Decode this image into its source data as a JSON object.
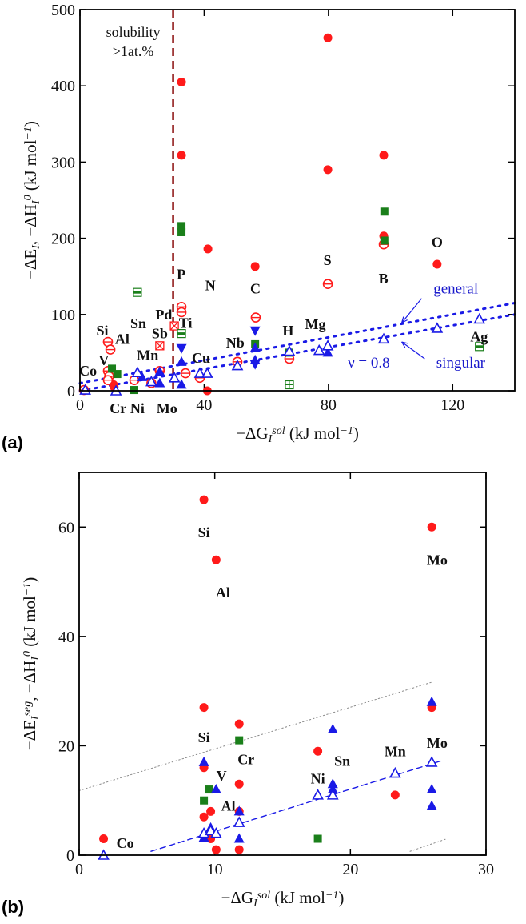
{
  "chart_data": [
    {
      "panel_label": "(a)",
      "type": "scatter",
      "xlabel": "−ΔG_{I}^{sol}   (kJ mol^{−1})",
      "ylabel": "−ΔE_{I},  −ΔH_{I}^{0}   (kJ mol^{−1})",
      "xlim": [
        0,
        140
      ],
      "ylim": [
        0,
        500
      ],
      "xticks": [
        0,
        40,
        80,
        120
      ],
      "yticks": [
        0,
        100,
        200,
        300,
        400,
        500
      ],
      "grid": false,
      "colors": {
        "red": "#ff1a1a",
        "green": "#1a7f1a",
        "blue": "#1a1ae6",
        "threshold": "#8b1010"
      },
      "threshold_line": {
        "x": 30,
        "style": "dashed",
        "label_lines": [
          "solubility",
          ">1at.%"
        ]
      },
      "series": [
        {
          "marker": "filled-circle",
          "color": "#ff1a1a",
          "points": [
            [
              32.7,
              405
            ],
            [
              32.7,
              309
            ],
            [
              41.2,
              186
            ],
            [
              41,
              0
            ],
            [
              56.4,
              163
            ],
            [
              79.8,
              463
            ],
            [
              79.8,
              290
            ],
            [
              97.8,
              309
            ],
            [
              97.8,
              203
            ],
            [
              115,
              166
            ],
            [
              10.8,
              8
            ],
            [
              11,
              5
            ]
          ]
        },
        {
          "marker": "open-circle-bar",
          "color": "#ff1a1a",
          "points": [
            [
              9,
              64
            ],
            [
              9.8,
              54
            ],
            [
              9,
              26
            ],
            [
              9.4,
              19
            ],
            [
              9,
              14
            ],
            [
              1.3,
              1
            ],
            [
              17.5,
              14
            ],
            [
              23,
              10
            ],
            [
              25.7,
              26
            ],
            [
              32.7,
              110
            ],
            [
              32.7,
              103
            ],
            [
              34,
              23
            ],
            [
              38.6,
              17
            ],
            [
              56.6,
              96
            ],
            [
              50.7,
              38
            ],
            [
              67.4,
              42
            ],
            [
              79.8,
              140
            ],
            [
              97.8,
              192
            ]
          ]
        },
        {
          "marker": "crossed-square",
          "color": "#ff1a1a",
          "points": [
            [
              30.4,
              85
            ],
            [
              25.7,
              59
            ]
          ]
        },
        {
          "marker": "filled-square",
          "color": "#1a7f1a",
          "points": [
            [
              32.7,
              216
            ],
            [
              32.7,
              208
            ],
            [
              98,
              235
            ],
            [
              98,
              197
            ],
            [
              10.3,
              29
            ],
            [
              12,
              22
            ],
            [
              17.5,
              1
            ],
            [
              56.4,
              61
            ],
            [
              67.4,
              50
            ]
          ]
        },
        {
          "marker": "half-square",
          "color": "#1a7f1a",
          "points": [
            [
              18.5,
              129
            ],
            [
              32.7,
              75
            ],
            [
              128.6,
              58
            ]
          ]
        },
        {
          "marker": "grid-square",
          "color": "#1a7f1a",
          "points": [
            [
              67.4,
              8
            ]
          ]
        },
        {
          "marker": "filled-triangle-up",
          "color": "#1a1ae6",
          "points": [
            [
              32.7,
              38
            ],
            [
              32.7,
              8
            ],
            [
              25.7,
              10
            ],
            [
              25.7,
              25
            ],
            [
              56.4,
              56
            ],
            [
              56.4,
              40
            ],
            [
              79.8,
              50
            ],
            [
              20,
              18
            ]
          ]
        },
        {
          "marker": "filled-triangle-down",
          "color": "#1a1ae6",
          "points": [
            [
              32.7,
              56
            ],
            [
              56.4,
              79
            ],
            [
              56.4,
              35
            ]
          ]
        },
        {
          "marker": "open-triangle-up",
          "color": "#1a1ae6",
          "points": [
            [
              1.7,
              1
            ],
            [
              11.6,
              0
            ],
            [
              18.5,
              24
            ],
            [
              23,
              12
            ],
            [
              30.4,
              17
            ],
            [
              38.6,
              23
            ],
            [
              41,
              23
            ],
            [
              50.7,
              33
            ],
            [
              67.4,
              52
            ],
            [
              77,
              53
            ],
            [
              79.8,
              59
            ],
            [
              97.8,
              68
            ],
            [
              115,
              82
            ],
            [
              128.6,
              94
            ]
          ]
        }
      ],
      "lines": [
        {
          "label": "general",
          "style": "dotted",
          "color": "#1a1ae6",
          "from": [
            0,
            10
          ],
          "to": [
            140,
            115
          ]
        },
        {
          "label": "singular",
          "style": "dotted",
          "color": "#1a1ae6",
          "from": [
            0,
            0
          ],
          "to": [
            140,
            100
          ]
        }
      ],
      "line_annotation": "ν = 0.8",
      "element_labels": [
        {
          "text": "Co",
          "x": 2.6,
          "y": 26
        },
        {
          "text": "Si",
          "x": 7.2,
          "y": 79
        },
        {
          "text": "V",
          "x": 7.7,
          "y": 40
        },
        {
          "text": "Al",
          "x": 13.6,
          "y": 68
        },
        {
          "text": "Sn",
          "x": 18.8,
          "y": 88
        },
        {
          "text": "Mn",
          "x": 21.8,
          "y": 47
        },
        {
          "text": "Sb",
          "x": 25.7,
          "y": 75
        },
        {
          "text": "Pd",
          "x": 27,
          "y": 100
        },
        {
          "text": "Ti",
          "x": 34,
          "y": 89
        },
        {
          "text": "P",
          "x": 32.6,
          "y": 153
        },
        {
          "text": "N",
          "x": 42,
          "y": 138
        },
        {
          "text": "C",
          "x": 56.5,
          "y": 134
        },
        {
          "text": "Cu",
          "x": 39,
          "y": 43
        },
        {
          "text": "Nb",
          "x": 50,
          "y": 63
        },
        {
          "text": "H",
          "x": 67,
          "y": 79
        },
        {
          "text": "Mg",
          "x": 75.8,
          "y": 87
        },
        {
          "text": "S",
          "x": 79.7,
          "y": 171
        },
        {
          "text": "B",
          "x": 97.7,
          "y": 147
        },
        {
          "text": "O",
          "x": 115,
          "y": 195
        },
        {
          "text": "Ag",
          "x": 128.5,
          "y": 71
        },
        {
          "text": "Cr",
          "x": 12.3,
          "y": -23
        },
        {
          "text": "Ni",
          "x": 18.5,
          "y": -23
        },
        {
          "text": "Mo",
          "x": 28,
          "y": -23
        }
      ]
    },
    {
      "panel_label": "(b)",
      "type": "scatter",
      "xlabel": "−ΔG_{I}^{sol}   (kJ mol^{−1})",
      "ylabel": "−ΔE_{I}^{seg},  −ΔH_{I}^{0}   (kJ mol^{−1})",
      "xlim": [
        0,
        30
      ],
      "ylim": [
        0,
        70
      ],
      "xticks": [
        0,
        10,
        20,
        30
      ],
      "yticks": [
        0,
        20,
        40,
        60
      ],
      "grid": false,
      "series": [
        {
          "marker": "filled-circle",
          "color": "#ff1a1a",
          "points": [
            [
              9.2,
              65
            ],
            [
              26,
              60
            ],
            [
              10.1,
              54
            ],
            [
              9.2,
              27
            ],
            [
              11.8,
              24
            ],
            [
              26,
              27
            ],
            [
              17.6,
              19
            ],
            [
              9.2,
              16
            ],
            [
              11.8,
              13
            ],
            [
              23.3,
              11
            ],
            [
              9.7,
              8
            ],
            [
              9.2,
              7
            ],
            [
              11.8,
              8
            ],
            [
              1.8,
              3
            ],
            [
              9.7,
              3
            ],
            [
              10.1,
              1
            ],
            [
              11.8,
              1
            ]
          ]
        },
        {
          "marker": "filled-square",
          "color": "#1a7f1a",
          "points": [
            [
              11.8,
              21
            ],
            [
              9.6,
              12
            ],
            [
              9.2,
              10
            ],
            [
              17.6,
              3
            ]
          ]
        },
        {
          "marker": "filled-triangle-up",
          "color": "#1a1ae6",
          "points": [
            [
              26,
              28
            ],
            [
              18.7,
              23
            ],
            [
              9.2,
              17
            ],
            [
              10.1,
              12
            ],
            [
              18.7,
              13
            ],
            [
              18.7,
              12
            ],
            [
              26,
              12
            ],
            [
              26,
              9
            ],
            [
              11.8,
              8
            ],
            [
              9.7,
              5
            ],
            [
              9.2,
              3.2
            ],
            [
              11.8,
              3
            ]
          ]
        },
        {
          "marker": "open-triangle-up",
          "color": "#1a1ae6",
          "points": [
            [
              1.8,
              0
            ],
            [
              9.2,
              4
            ],
            [
              9.7,
              4.5
            ],
            [
              10.1,
              4
            ],
            [
              11.8,
              6
            ],
            [
              17.6,
              11
            ],
            [
              18.7,
              11
            ],
            [
              23.3,
              15
            ],
            [
              26,
              17
            ]
          ]
        }
      ],
      "lines": [
        {
          "style": "dashed",
          "color": "#1a1ae6",
          "from": [
            5.3,
            0.7
          ],
          "to": [
            26.9,
            17.4
          ]
        },
        {
          "style": "dotted",
          "color": "#888888",
          "from": [
            0,
            11.8
          ],
          "to": [
            26.1,
            31.7
          ]
        },
        {
          "style": "dotted",
          "color": "#888888",
          "from": [
            24.4,
            0.7
          ],
          "to": [
            27,
            2.9
          ]
        }
      ],
      "element_labels": [
        {
          "text": "Si",
          "x": 9.2,
          "y": 59
        },
        {
          "text": "Al",
          "x": 10.6,
          "y": 48
        },
        {
          "text": "Mo",
          "x": 26.4,
          "y": 54
        },
        {
          "text": "Si",
          "x": 9.2,
          "y": 21.5
        },
        {
          "text": "V",
          "x": 10.5,
          "y": 14.5
        },
        {
          "text": "Cr",
          "x": 12.3,
          "y": 17.5
        },
        {
          "text": "Al",
          "x": 11,
          "y": 9
        },
        {
          "text": "Co",
          "x": 3.4,
          "y": 2.2
        },
        {
          "text": "Ni",
          "x": 17.6,
          "y": 14
        },
        {
          "text": "Sn",
          "x": 19.4,
          "y": 17.2
        },
        {
          "text": "Mn",
          "x": 23.3,
          "y": 19
        },
        {
          "text": "Mo",
          "x": 26.4,
          "y": 20.5
        }
      ]
    }
  ]
}
